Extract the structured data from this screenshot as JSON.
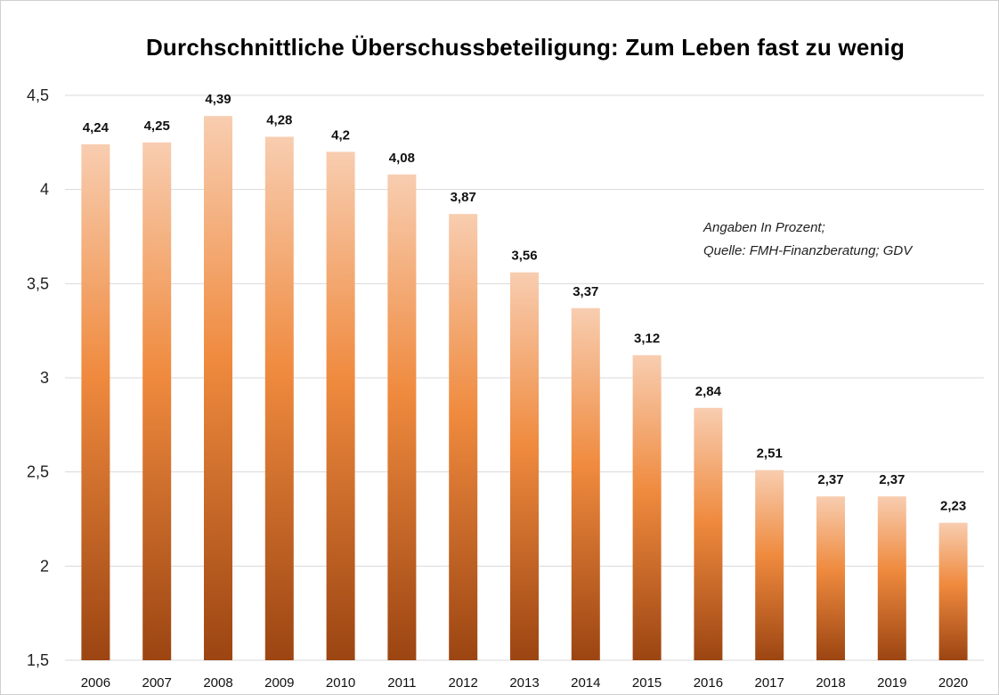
{
  "chart_data": {
    "type": "bar",
    "title": "Durchschnittliche Überschussbeteiligung: Zum Leben fast zu wenig",
    "xlabel": "",
    "ylabel": "",
    "categories": [
      "2006",
      "2007",
      "2008",
      "2009",
      "2010",
      "2011",
      "2012",
      "2013",
      "2014",
      "2015",
      "2016",
      "2017",
      "2018",
      "2019",
      "2020"
    ],
    "values": [
      4.24,
      4.25,
      4.39,
      4.28,
      4.2,
      4.08,
      3.87,
      3.56,
      3.37,
      3.12,
      2.84,
      2.51,
      2.37,
      2.37,
      2.23
    ],
    "data_labels": [
      "4,24",
      "4,25",
      "4,39",
      "4,28",
      "4,2",
      "4,08",
      "3,87",
      "3,56",
      "3,37",
      "3,12",
      "2,84",
      "2,51",
      "2,37",
      "2,37",
      "2,23"
    ],
    "ylim": [
      1.5,
      4.5
    ],
    "yticks": [
      1.5,
      2,
      2.5,
      3,
      3.5,
      4,
      4.5
    ],
    "ytick_labels": [
      "1,5",
      "2",
      "2,5",
      "3",
      "3,5",
      "4",
      "4,5"
    ],
    "grid": true,
    "legend": "none",
    "annotations": [
      "Angaben In Prozent;",
      "Quelle: FMH-Finanzberatung; GDV"
    ],
    "colors": {
      "bar_top": "#f8cdb0",
      "bar_mid": "#ef8a3e",
      "bar_bottom": "#9c4512",
      "grid": "#d9d9d9"
    }
  }
}
